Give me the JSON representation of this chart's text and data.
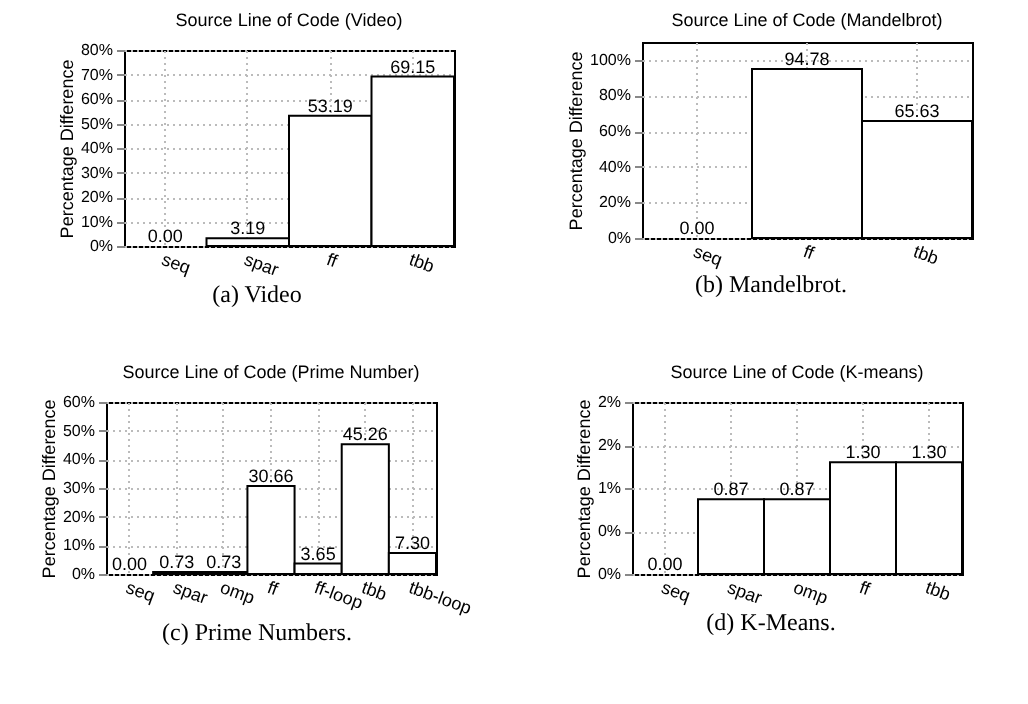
{
  "chart_data": [
    {
      "type": "bar",
      "title": "Source Line of Code (Video)",
      "ylabel": "Percentage Difference",
      "categories": [
        "seq",
        "spar",
        "ff",
        "tbb"
      ],
      "values": [
        0.0,
        3.19,
        53.19,
        69.15
      ],
      "value_labels": [
        "0.00",
        "3.19",
        "53.19",
        "69.15"
      ],
      "color": "#ffffff",
      "ylim": [
        0,
        80
      ],
      "yticks": [
        {
          "value": 0,
          "label": "0%"
        },
        {
          "value": 10,
          "label": "10%"
        },
        {
          "value": 20,
          "label": "20%"
        },
        {
          "value": 30,
          "label": "30%"
        },
        {
          "value": 40,
          "label": "40%"
        },
        {
          "value": 50,
          "label": "50%"
        },
        {
          "value": 60,
          "label": "60%"
        },
        {
          "value": 70,
          "label": "70%"
        },
        {
          "value": 80,
          "label": "80%"
        }
      ],
      "grid": true,
      "annotations": [
        "(a) Video"
      ]
    },
    {
      "type": "bar",
      "title": "Source Line of Code (Mandelbrot)",
      "ylabel": "Percentage Difference",
      "categories": [
        "seq",
        "ff",
        "tbb"
      ],
      "values": [
        0.0,
        94.78,
        65.63
      ],
      "value_labels": [
        "0.00",
        "94.78",
        "65.63"
      ],
      "color": "#ffffff",
      "ylim": [
        0,
        110
      ],
      "yticks": [
        {
          "value": 0,
          "label": "0%"
        },
        {
          "value": 20,
          "label": "20%"
        },
        {
          "value": 40,
          "label": "40%"
        },
        {
          "value": 60,
          "label": "60%"
        },
        {
          "value": 80,
          "label": "80%"
        },
        {
          "value": 100,
          "label": "100%"
        }
      ],
      "grid": true,
      "annotations": [
        "(b) Mandelbrot."
      ]
    },
    {
      "type": "bar",
      "title": "Source Line of Code (Prime Number)",
      "ylabel": "Percentage Difference",
      "categories": [
        "seq",
        "spar",
        "omp",
        "ff",
        "ff-loop",
        "tbb",
        "tbb-loop"
      ],
      "values": [
        0.0,
        0.73,
        0.73,
        30.66,
        3.65,
        45.26,
        7.3
      ],
      "value_labels": [
        "0.00",
        "0.73",
        "0.73",
        "30.66",
        "3.65",
        "45.26",
        "7.30"
      ],
      "color": "#ffffff",
      "ylim": [
        0,
        60
      ],
      "yticks": [
        {
          "value": 0,
          "label": "0%"
        },
        {
          "value": 10,
          "label": "10%"
        },
        {
          "value": 20,
          "label": "20%"
        },
        {
          "value": 30,
          "label": "30%"
        },
        {
          "value": 40,
          "label": "40%"
        },
        {
          "value": 50,
          "label": "50%"
        },
        {
          "value": 60,
          "label": "60%"
        }
      ],
      "grid": true,
      "annotations": [
        "(c) Prime Numbers."
      ]
    },
    {
      "type": "bar",
      "title": "Source Line of Code (K-means)",
      "ylabel": "Percentage Difference",
      "categories": [
        "seq",
        "spar",
        "omp",
        "ff",
        "tbb"
      ],
      "values": [
        0.0,
        0.87,
        0.87,
        1.3,
        1.3
      ],
      "value_labels": [
        "0.00",
        "0.87",
        "0.87",
        "1.30",
        "1.30"
      ],
      "color": "#ffffff",
      "ylim": [
        0,
        2
      ],
      "yticks": [
        {
          "value": 0,
          "label": "0%"
        },
        {
          "value": 0.5,
          "label": "0%"
        },
        {
          "value": 1,
          "label": "1%"
        },
        {
          "value": 1.5,
          "label": "2%"
        },
        {
          "value": 2,
          "label": "2%"
        }
      ],
      "grid": true,
      "annotations": [
        "(d) K-Means."
      ]
    }
  ]
}
